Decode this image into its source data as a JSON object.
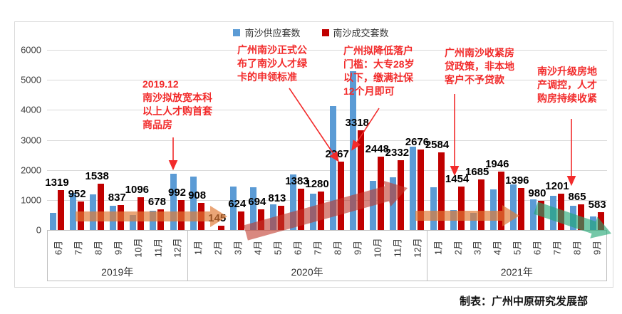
{
  "legend": [
    {
      "label": "南沙供应套数",
      "color": "#5B9BD5"
    },
    {
      "label": "南沙成交套数",
      "color": "#C00000"
    }
  ],
  "chart_data": {
    "type": "bar",
    "title": "",
    "xlabel": "",
    "ylabel": "",
    "ylim": [
      0,
      6000
    ],
    "ytick_step": 1000,
    "grid": true,
    "legend_position": "top",
    "groups": [
      {
        "year": "2019年",
        "months": [
          "6月",
          "7月",
          "8月",
          "9月",
          "10月",
          "11月",
          "12月"
        ]
      },
      {
        "year": "2020年",
        "months": [
          "1月",
          "2月",
          "3月",
          "4月",
          "5月",
          "6月",
          "7月",
          "8月",
          "9月",
          "10月",
          "11月",
          "12月"
        ]
      },
      {
        "year": "2021年",
        "months": [
          "1月",
          "2月",
          "3月",
          "4月",
          "5月",
          "6月",
          "7月",
          "8月",
          "9月"
        ]
      }
    ],
    "series": [
      {
        "name": "南沙供应套数",
        "color": "#5B9BD5",
        "show_labels": false,
        "values": [
          580,
          1240,
          1180,
          810,
          490,
          630,
          1880,
          1770,
          0,
          1450,
          1420,
          850,
          1840,
          1210,
          4120,
          5290,
          1640,
          1760,
          2780,
          1430,
          660,
          570,
          1360,
          1520,
          1030,
          1150,
          815,
          450
        ]
      },
      {
        "name": "南沙成交套数",
        "color": "#C00000",
        "show_labels": true,
        "values": [
          1319,
          952,
          1538,
          837,
          1096,
          678,
          992,
          908,
          145,
          624,
          694,
          813,
          1383,
          1280,
          2267,
          3318,
          2448,
          2332,
          2676,
          2584,
          1454,
          1685,
          1946,
          1396,
          980,
          1201,
          865,
          583
        ]
      }
    ],
    "trend_arrows": [
      {
        "name": "orange-flat-arrow-2019",
        "color": "#E07B35"
      },
      {
        "name": "red-rising-arrow-2020",
        "color": "#C0392B"
      },
      {
        "name": "orange-flat-arrow-2021",
        "color": "#E07B35"
      },
      {
        "name": "green-declining-arrow-2021",
        "color": "#21A672"
      }
    ]
  },
  "annotations": [
    {
      "text": "2019.12\n南沙拟放宽本科\n以上人才购首套\n商品房"
    },
    {
      "text": "广州南沙正式公\n布了南沙人才绿\n卡的申领标准"
    },
    {
      "text": "广州拟降低落户\n门槛：大专28岁\n以下，缴满社保\n12个月即可"
    },
    {
      "text": "广州南沙收紧房\n贷政策，非本地\n客户不予贷款"
    },
    {
      "text": "南沙升级房地\n产调控，人才\n购房持续收紧"
    }
  ],
  "footer": {
    "text": "制表：广州中原研究发展部"
  }
}
